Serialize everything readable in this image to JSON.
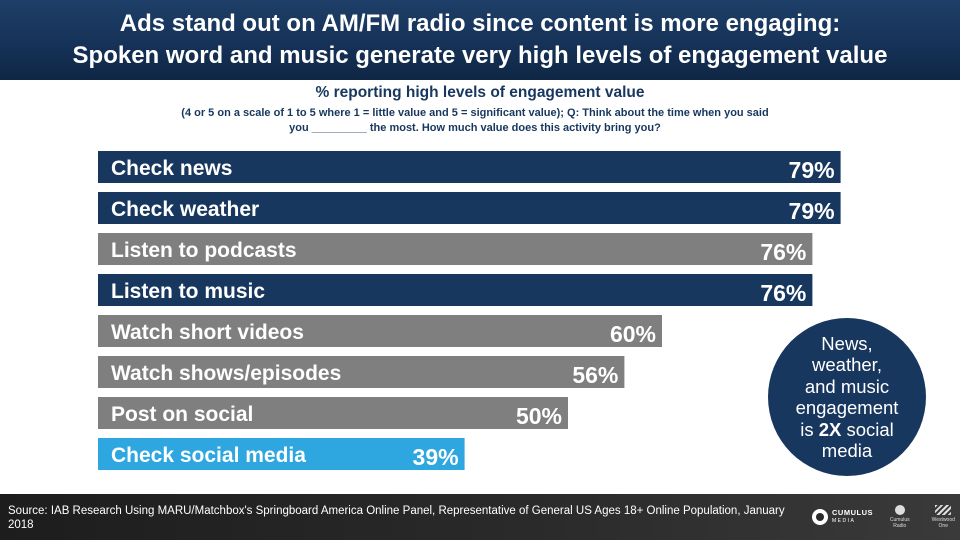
{
  "header": {
    "line1": "Ads stand out on AM/FM radio since content is more engaging:",
    "line2": "Spoken word and music generate very high levels of engagement value"
  },
  "subtitle": "% reporting high levels of engagement value",
  "question": {
    "line1": "(4 or 5 on a scale of 1 to 5 where 1 = little value and 5 = significant value); Q: Think about the time when you said",
    "line2": "you _________ the most. How much value does this activity bring you?"
  },
  "chart_data": {
    "type": "bar",
    "orientation": "horizontal",
    "categories": [
      "Check news",
      "Check weather",
      "Listen to podcasts",
      "Listen to music",
      "Watch short videos",
      "Watch shows/episodes",
      "Post on social",
      "Check social media"
    ],
    "values": [
      79,
      79,
      76,
      76,
      60,
      56,
      50,
      39
    ],
    "labels": [
      "79%",
      "79%",
      "76%",
      "76%",
      "60%",
      "56%",
      "50%",
      "39%"
    ],
    "bar_colors": [
      "#17375e",
      "#17375e",
      "#7f7f7f",
      "#17375e",
      "#7f7f7f",
      "#7f7f7f",
      "#7f7f7f",
      "#2ea7e0"
    ],
    "xlim": [
      0,
      100
    ],
    "grid": false
  },
  "callout": {
    "line1": "News,",
    "line2": "weather,",
    "line3": "and music",
    "line4": "engagement",
    "line5_pre": "is ",
    "line5_bold": "2X",
    "line5_post": " social",
    "line6": "media"
  },
  "footer": {
    "source": "Source: IAB Research Using MARU/Matchbox's Springboard America Online Panel, Representative of General US Ages 18+ Online Population, January 2018",
    "logo1": "CUMULUS",
    "logo1_sub": "MEDIA",
    "logo2": "Cumulus Radio",
    "logo3": "Westwood One"
  }
}
